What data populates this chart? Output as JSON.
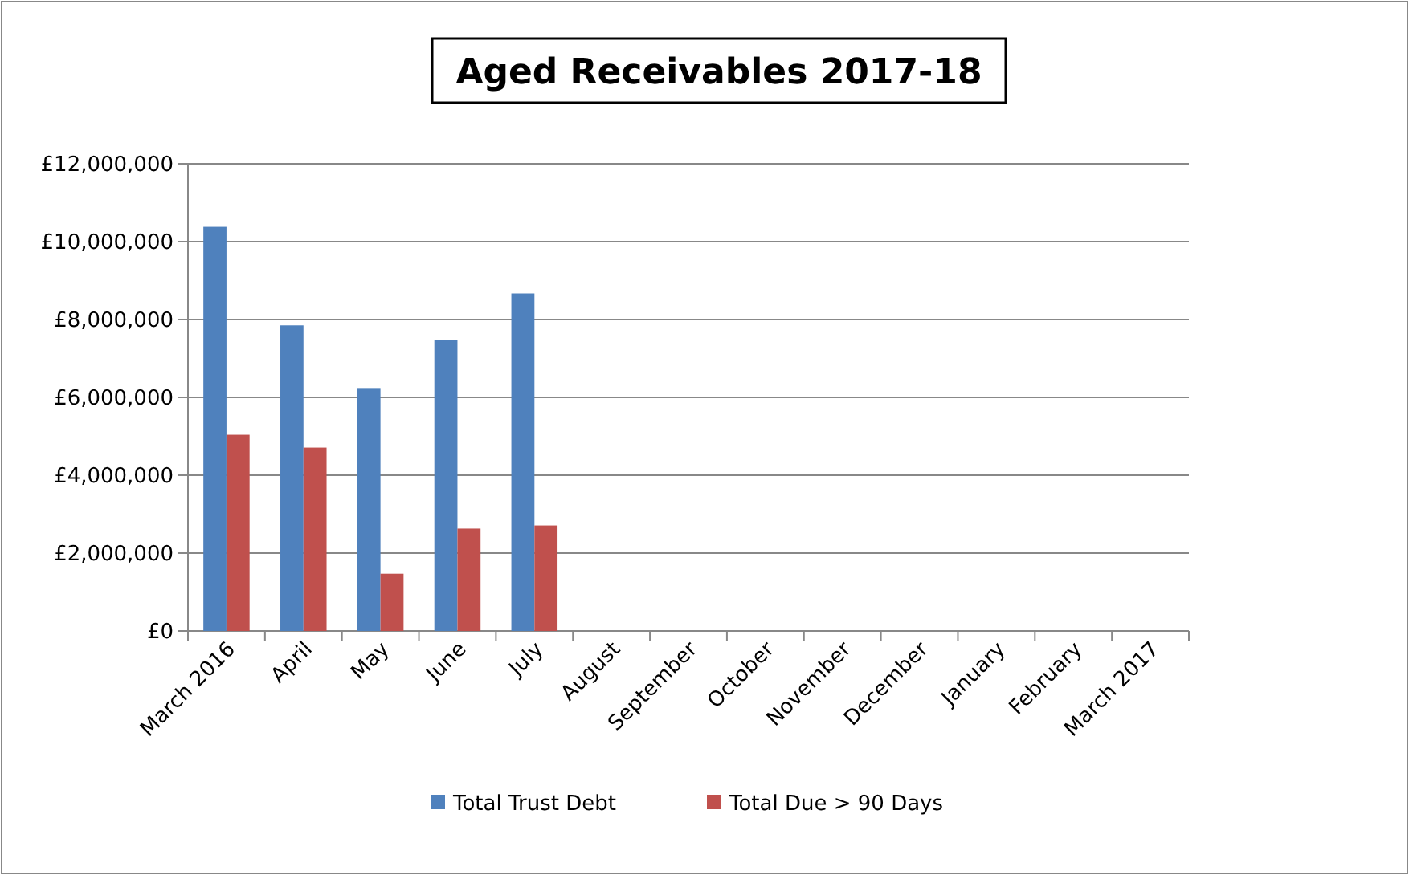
{
  "chart_data": {
    "type": "bar",
    "title": "Aged Receivables 2017-18",
    "categories": [
      "March 2016",
      "April",
      "May",
      "June",
      "July",
      "August",
      "September",
      "October",
      "November",
      "December",
      "January",
      "February",
      "March 2017"
    ],
    "series": [
      {
        "name": "Total Trust Debt",
        "color": "#4f81bd",
        "values": [
          10380000,
          7850000,
          6240000,
          7480000,
          8670000,
          null,
          null,
          null,
          null,
          null,
          null,
          null,
          null
        ]
      },
      {
        "name": "Total Due > 90 Days",
        "color": "#c0504d",
        "values": [
          5040000,
          4710000,
          1470000,
          2630000,
          2710000,
          null,
          null,
          null,
          null,
          null,
          null,
          null,
          null
        ]
      }
    ],
    "ylim": [
      0,
      12000000
    ],
    "yticks": [
      {
        "value": 0,
        "label": "£0"
      },
      {
        "value": 2000000,
        "label": "£2,000,000"
      },
      {
        "value": 4000000,
        "label": "£4,000,000"
      },
      {
        "value": 6000000,
        "label": "£6,000,000"
      },
      {
        "value": 8000000,
        "label": "£8,000,000"
      },
      {
        "value": 10000000,
        "label": "£10,000,000"
      },
      {
        "value": 12000000,
        "label": "£12,000,000"
      }
    ],
    "grid": "y",
    "legend": "bottom"
  }
}
